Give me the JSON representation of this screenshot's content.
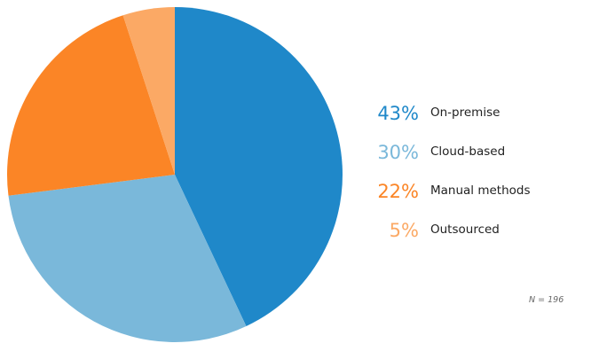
{
  "chart_data": {
    "type": "pie",
    "categories": [
      "On-premise",
      "Cloud-based",
      "Manual methods",
      "Outsourced"
    ],
    "values": [
      43,
      30,
      22,
      5
    ],
    "value_labels": [
      "43%",
      "30%",
      "22%",
      "5%"
    ],
    "colors": [
      "#1f88c9",
      "#7ab8da",
      "#fb8526",
      "#fba965"
    ],
    "start_angle_deg": 0,
    "direction": "clockwise",
    "legend_placement": "right",
    "note": "N = 196"
  }
}
